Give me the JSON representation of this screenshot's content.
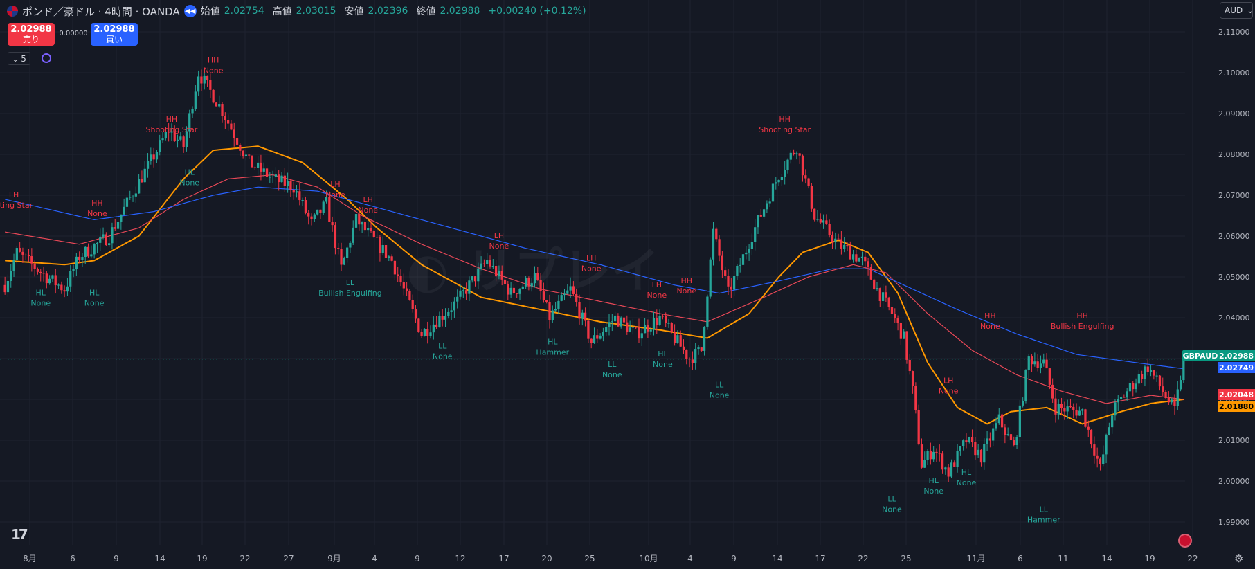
{
  "header": {
    "title": "ポンド／豪ドル · 4時間 · OANDA",
    "open_label": "始値",
    "open_value": "2.02754",
    "high_label": "高値",
    "high_value": "2.03015",
    "low_label": "安値",
    "low_value": "2.02396",
    "close_label": "終値",
    "close_value": "2.02988",
    "change": "+0.00240 (+0.12%)"
  },
  "trade": {
    "sell_price": "2.02988",
    "sell_label": "売り",
    "spread": "0.00000",
    "buy_price": "2.02988",
    "buy_label": "買い"
  },
  "interval_value": "5",
  "currency_select": "AUD",
  "colors": {
    "up": "#26a69a",
    "down": "#f23645",
    "ma_orange": "#ff9800",
    "ma_red": "#e84857",
    "ma_blue": "#2962ff",
    "label_high": "#f23645",
    "label_low": "#26a69a"
  },
  "chart_data": {
    "type": "candlestick",
    "symbol": "GBPAUD",
    "y_axis_labels": [
      "2.11000",
      "2.10000",
      "2.09000",
      "2.08000",
      "2.07000",
      "2.06000",
      "2.05000",
      "2.04000",
      "2.03000",
      "2.02000",
      "2.01000",
      "2.00000",
      "1.99000"
    ],
    "ylim": [
      1.985,
      2.11
    ],
    "x_axis_labels": [
      "8月",
      "6",
      "9",
      "14",
      "19",
      "22",
      "27",
      "9月",
      "4",
      "9",
      "12",
      "17",
      "20",
      "25",
      "10月",
      "4",
      "9",
      "14",
      "17",
      "22",
      "25",
      "11月",
      "6",
      "11",
      "14",
      "19",
      "22"
    ],
    "price_tags": [
      {
        "label": "GBPAUD",
        "value": "2.02988",
        "color": "#089981"
      },
      {
        "value": "2.02749",
        "color": "#2962ff"
      },
      {
        "value": "2.02048",
        "color": "#f23645"
      },
      {
        "value": "2.01880",
        "color": "#ff9800"
      }
    ],
    "last_price": 2.02988,
    "anchors": [
      [
        0,
        2.048
      ],
      [
        4,
        2.056
      ],
      [
        14,
        2.05
      ],
      [
        20,
        2.047
      ],
      [
        25,
        2.055
      ],
      [
        35,
        2.06
      ],
      [
        44,
        2.072
      ],
      [
        55,
        2.086
      ],
      [
        60,
        2.082
      ],
      [
        65,
        2.1
      ],
      [
        72,
        2.092
      ],
      [
        82,
        2.078
      ],
      [
        90,
        2.074
      ],
      [
        97,
        2.072
      ],
      [
        103,
        2.063
      ],
      [
        108,
        2.068
      ],
      [
        113,
        2.052
      ],
      [
        118,
        2.064
      ],
      [
        130,
        2.054
      ],
      [
        140,
        2.036
      ],
      [
        152,
        2.044
      ],
      [
        162,
        2.054
      ],
      [
        170,
        2.046
      ],
      [
        178,
        2.05
      ],
      [
        183,
        2.04
      ],
      [
        190,
        2.047
      ],
      [
        197,
        2.034
      ],
      [
        205,
        2.04
      ],
      [
        212,
        2.036
      ],
      [
        220,
        2.04
      ],
      [
        230,
        2.03
      ],
      [
        234,
        2.032
      ],
      [
        238,
        2.061
      ],
      [
        243,
        2.046
      ],
      [
        252,
        2.062
      ],
      [
        260,
        2.075
      ],
      [
        266,
        2.082
      ],
      [
        272,
        2.065
      ],
      [
        280,
        2.058
      ],
      [
        288,
        2.054
      ],
      [
        293,
        2.047
      ],
      [
        298,
        2.041
      ],
      [
        302,
        2.035
      ],
      [
        305,
        2.022
      ],
      [
        308,
        2.004
      ],
      [
        312,
        2.008
      ],
      [
        317,
        2.002
      ],
      [
        323,
        2.01
      ],
      [
        328,
        2.006
      ],
      [
        334,
        2.015
      ],
      [
        339,
        2.008
      ],
      [
        344,
        2.03
      ],
      [
        349,
        2.029
      ],
      [
        353,
        2.018
      ],
      [
        362,
        2.017
      ],
      [
        368,
        2.003
      ],
      [
        372,
        2.017
      ],
      [
        378,
        2.023
      ],
      [
        384,
        2.028
      ],
      [
        389,
        2.022
      ],
      [
        393,
        2.017
      ],
      [
        396,
        2.0299
      ]
    ],
    "moving_averages": [
      {
        "color": "#ff9800",
        "points": [
          [
            0,
            2.054
          ],
          [
            20,
            2.053
          ],
          [
            30,
            2.054
          ],
          [
            45,
            2.06
          ],
          [
            60,
            2.074
          ],
          [
            70,
            2.081
          ],
          [
            85,
            2.082
          ],
          [
            100,
            2.078
          ],
          [
            115,
            2.069
          ],
          [
            125,
            2.062
          ],
          [
            140,
            2.053
          ],
          [
            160,
            2.045
          ],
          [
            180,
            2.042
          ],
          [
            200,
            2.039
          ],
          [
            220,
            2.037
          ],
          [
            236,
            2.035
          ],
          [
            250,
            2.041
          ],
          [
            260,
            2.05
          ],
          [
            268,
            2.056
          ],
          [
            280,
            2.059
          ],
          [
            290,
            2.056
          ],
          [
            300,
            2.046
          ],
          [
            310,
            2.029
          ],
          [
            320,
            2.018
          ],
          [
            330,
            2.014
          ],
          [
            338,
            2.017
          ],
          [
            350,
            2.018
          ],
          [
            362,
            2.014
          ],
          [
            375,
            2.017
          ],
          [
            385,
            2.019
          ],
          [
            396,
            2.02
          ]
        ]
      },
      {
        "color": "#e84857",
        "points": [
          [
            0,
            2.061
          ],
          [
            25,
            2.058
          ],
          [
            45,
            2.062
          ],
          [
            60,
            2.069
          ],
          [
            75,
            2.074
          ],
          [
            90,
            2.075
          ],
          [
            105,
            2.072
          ],
          [
            120,
            2.065
          ],
          [
            140,
            2.058
          ],
          [
            160,
            2.052
          ],
          [
            180,
            2.047
          ],
          [
            200,
            2.044
          ],
          [
            220,
            2.041
          ],
          [
            236,
            2.039
          ],
          [
            255,
            2.045
          ],
          [
            270,
            2.05
          ],
          [
            285,
            2.053
          ],
          [
            296,
            2.051
          ],
          [
            310,
            2.041
          ],
          [
            325,
            2.032
          ],
          [
            340,
            2.026
          ],
          [
            355,
            2.022
          ],
          [
            370,
            2.019
          ],
          [
            385,
            2.021
          ],
          [
            396,
            2.02
          ]
        ]
      },
      {
        "color": "#2962ff",
        "points": [
          [
            0,
            2.069
          ],
          [
            30,
            2.064
          ],
          [
            50,
            2.066
          ],
          [
            70,
            2.07
          ],
          [
            85,
            2.072
          ],
          [
            105,
            2.071
          ],
          [
            130,
            2.066
          ],
          [
            150,
            2.062
          ],
          [
            175,
            2.057
          ],
          [
            200,
            2.053
          ],
          [
            225,
            2.048
          ],
          [
            240,
            2.046
          ],
          [
            260,
            2.049
          ],
          [
            278,
            2.052
          ],
          [
            290,
            2.052
          ],
          [
            305,
            2.047
          ],
          [
            320,
            2.042
          ],
          [
            340,
            2.036
          ],
          [
            360,
            2.031
          ],
          [
            380,
            2.029
          ],
          [
            396,
            2.0275
          ]
        ]
      }
    ],
    "annotations": [
      {
        "bar": 3,
        "price": 2.0695,
        "kind": "high",
        "lines": [
          "LH",
          "oting Star"
        ]
      },
      {
        "bar": 31,
        "price": 2.0675,
        "kind": "high",
        "lines": [
          "HH",
          "None"
        ]
      },
      {
        "bar": 70,
        "price": 2.1025,
        "kind": "high",
        "lines": [
          "HH",
          "None"
        ]
      },
      {
        "bar": 56,
        "price": 2.088,
        "kind": "high",
        "lines": [
          "HH",
          "Shooting Star"
        ]
      },
      {
        "bar": 111,
        "price": 2.072,
        "kind": "high",
        "lines": [
          "LH",
          "None"
        ]
      },
      {
        "bar": 122,
        "price": 2.0683,
        "kind": "high",
        "lines": [
          "LH",
          "None"
        ]
      },
      {
        "bar": 166,
        "price": 2.0595,
        "kind": "high",
        "lines": [
          "LH",
          "None"
        ]
      },
      {
        "bar": 197,
        "price": 2.054,
        "kind": "high",
        "lines": [
          "LH",
          "None"
        ]
      },
      {
        "bar": 229,
        "price": 2.0485,
        "kind": "high",
        "lines": [
          "HH",
          "None"
        ]
      },
      {
        "bar": 219,
        "price": 2.0475,
        "kind": "high",
        "lines": [
          "LH",
          "None"
        ]
      },
      {
        "bar": 262,
        "price": 2.088,
        "kind": "high",
        "lines": [
          "HH",
          "Shooting Star"
        ]
      },
      {
        "bar": 331,
        "price": 2.0398,
        "kind": "high",
        "lines": [
          "HH",
          "None"
        ]
      },
      {
        "bar": 317,
        "price": 2.024,
        "kind": "high",
        "lines": [
          "LH",
          "None"
        ]
      },
      {
        "bar": 362,
        "price": 2.0398,
        "kind": "high",
        "lines": [
          "HH",
          "Bullish Engulfing"
        ]
      },
      {
        "bar": 12,
        "price": 2.0455,
        "kind": "low",
        "lines": [
          "HL",
          "None"
        ]
      },
      {
        "bar": 30,
        "price": 2.0455,
        "kind": "low",
        "lines": [
          "HL",
          "None"
        ]
      },
      {
        "bar": 62,
        "price": 2.075,
        "kind": "low",
        "lines": [
          "HL",
          "None"
        ]
      },
      {
        "bar": 116,
        "price": 2.048,
        "kind": "low",
        "lines": [
          "LL",
          "Bullish Engulfing"
        ]
      },
      {
        "bar": 147,
        "price": 2.0325,
        "kind": "low",
        "lines": [
          "LL",
          "None"
        ]
      },
      {
        "bar": 184,
        "price": 2.0335,
        "kind": "low",
        "lines": [
          "HL",
          "Hammer"
        ]
      },
      {
        "bar": 204,
        "price": 2.028,
        "kind": "low",
        "lines": [
          "LL",
          "None"
        ]
      },
      {
        "bar": 221,
        "price": 2.0305,
        "kind": "low",
        "lines": [
          "HL",
          "None"
        ]
      },
      {
        "bar": 240,
        "price": 2.023,
        "kind": "low",
        "lines": [
          "LL",
          "None"
        ]
      },
      {
        "bar": 298,
        "price": 1.995,
        "kind": "low",
        "lines": [
          "LL",
          "None"
        ]
      },
      {
        "bar": 312,
        "price": 1.9995,
        "kind": "low",
        "lines": [
          "HL",
          "None"
        ]
      },
      {
        "bar": 323,
        "price": 2.0015,
        "kind": "low",
        "lines": [
          "HL",
          "None"
        ]
      },
      {
        "bar": 349,
        "price": 1.9925,
        "kind": "low",
        "lines": [
          "LL",
          "Hammer"
        ]
      }
    ]
  }
}
